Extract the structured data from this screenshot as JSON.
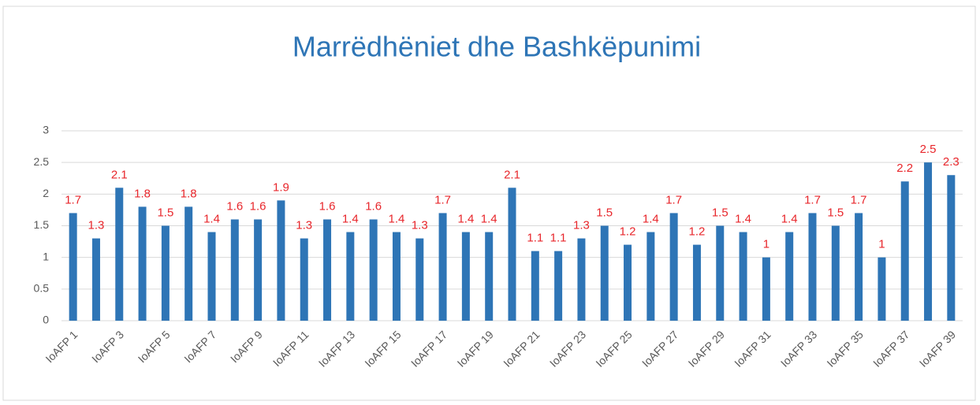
{
  "chart_data": {
    "type": "bar",
    "title": "Marrëdhëniet dhe Bashkëpunimi",
    "categories": [
      "IoAFP 1",
      null,
      "IoAFP 3",
      null,
      "IoAFP 5",
      null,
      "IoAFP 7",
      null,
      "IoAFP 9",
      null,
      "IoAFP 11",
      null,
      "IoAFP 13",
      null,
      "IoAFP 15",
      null,
      "IoAFP 17",
      null,
      "IoAFP 19",
      null,
      "IoAFP 21",
      null,
      "IoAFP 23",
      null,
      "IoAFP 25",
      null,
      "IoAFP 27",
      null,
      "IoAFP 29",
      null,
      "IoAFP 31",
      null,
      "IoAFP 33",
      null,
      "IoAFP 35",
      null,
      "IoAFP 37",
      null,
      "IoAFP 39"
    ],
    "values": [
      1.7,
      1.3,
      2.1,
      1.8,
      1.5,
      1.8,
      1.4,
      1.6,
      1.6,
      1.9,
      1.3,
      1.6,
      1.4,
      1.6,
      1.4,
      1.3,
      1.7,
      1.4,
      1.4,
      2.1,
      1.1,
      1.1,
      1.3,
      1.5,
      1.2,
      1.4,
      1.7,
      1.2,
      1.5,
      1.4,
      1,
      1.4,
      1.7,
      1.5,
      1.7,
      1,
      2.2,
      2.5,
      2.3
    ],
    "color": "#2e75b6",
    "label_color": "#e8262b",
    "ylim": [
      0,
      3
    ],
    "yticks": [
      0,
      0.5,
      1,
      1.5,
      2,
      2.5,
      3
    ],
    "grid": true
  }
}
